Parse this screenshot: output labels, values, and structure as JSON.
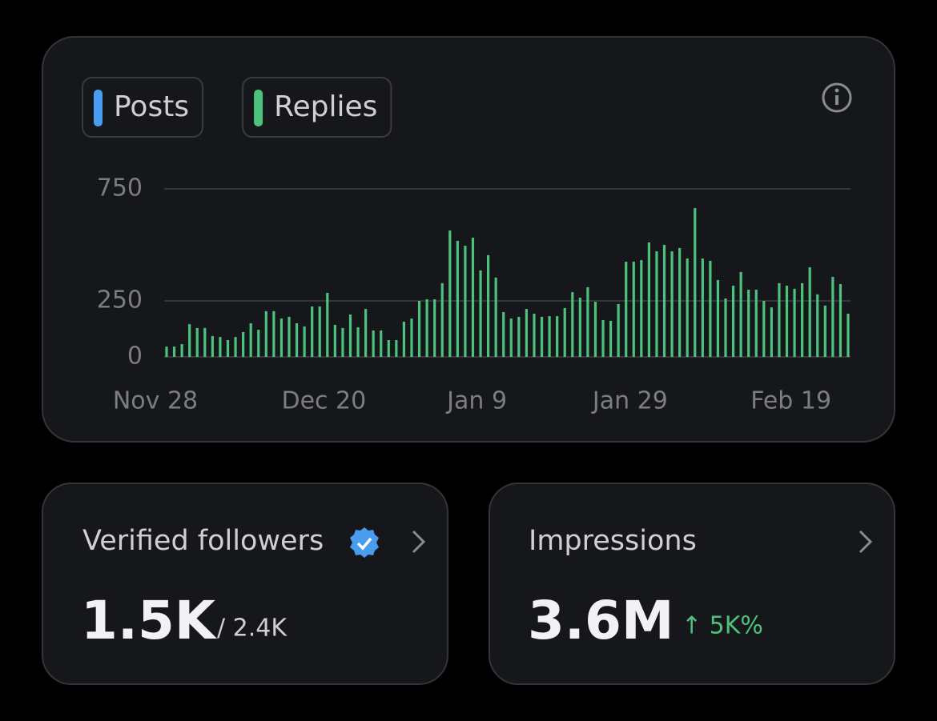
{
  "chart_data": {
    "type": "bar",
    "series": [
      {
        "name": "Posts",
        "color": "#4a9cf0",
        "values": [
          null,
          null,
          null,
          null,
          null,
          null,
          null,
          null,
          null,
          null,
          null,
          null,
          null,
          null,
          null,
          null,
          null,
          null,
          null,
          null,
          null,
          null,
          null,
          null,
          null,
          null,
          null,
          null,
          null,
          null,
          null,
          null,
          null,
          null,
          null,
          null,
          null,
          null,
          null,
          null,
          null,
          null,
          null,
          null,
          null,
          null,
          null,
          null,
          null,
          null,
          null,
          null,
          null,
          null,
          null,
          null,
          null,
          null,
          null,
          null,
          null,
          null,
          null,
          null,
          null,
          null,
          null,
          null,
          null,
          null,
          null,
          null,
          null,
          null,
          null,
          null,
          null,
          null,
          null,
          null,
          null,
          null,
          null,
          null,
          null,
          null,
          null,
          null,
          null,
          null
        ]
      },
      {
        "name": "Replies",
        "color": "#4cc27d",
        "values": [
          46,
          46,
          57,
          146,
          129,
          129,
          93,
          89,
          75,
          89,
          111,
          150,
          121,
          204,
          204,
          171,
          179,
          150,
          136,
          225,
          225,
          286,
          143,
          129,
          189,
          132,
          214,
          118,
          118,
          75,
          75,
          157,
          171,
          250,
          257,
          257,
          329,
          564,
          518,
          496,
          532,
          386,
          454,
          354,
          200,
          171,
          179,
          214,
          193,
          179,
          182,
          182,
          218,
          289,
          264,
          311,
          246,
          164,
          161,
          236,
          425,
          425,
          432,
          511,
          471,
          500,
          471,
          486,
          439,
          664,
          439,
          429,
          343,
          261,
          318,
          379,
          300,
          300,
          250,
          221,
          329,
          318,
          304,
          329,
          400,
          279,
          229,
          357,
          325,
          193
        ]
      }
    ],
    "categories": [
      "Nov 28",
      null,
      null,
      null,
      null,
      null,
      null,
      null,
      null,
      null,
      null,
      null,
      null,
      null,
      null,
      null,
      null,
      null,
      null,
      null,
      null,
      null,
      "Dec 20",
      null,
      null,
      null,
      null,
      null,
      null,
      null,
      null,
      null,
      null,
      null,
      null,
      null,
      null,
      null,
      null,
      null,
      null,
      null,
      "Jan 9",
      null,
      null,
      null,
      null,
      null,
      null,
      null,
      null,
      null,
      null,
      null,
      null,
      null,
      null,
      null,
      null,
      null,
      null,
      null,
      "Jan 29",
      null,
      null,
      null,
      null,
      null,
      null,
      null,
      null,
      null,
      null,
      null,
      null,
      null,
      null,
      null,
      null,
      null,
      null,
      null,
      null,
      "Feb 19",
      null,
      null,
      null,
      null,
      null,
      null
    ],
    "ylim": [
      0,
      750
    ],
    "yticks": [
      0,
      250,
      750
    ],
    "grid": true
  },
  "cards": [
    {
      "title": "Verified followers",
      "value": "1.5K",
      "total": "/ 2.4K"
    },
    {
      "title": "Impressions",
      "value": "3.6M",
      "change": "↑ 5K%"
    }
  ]
}
